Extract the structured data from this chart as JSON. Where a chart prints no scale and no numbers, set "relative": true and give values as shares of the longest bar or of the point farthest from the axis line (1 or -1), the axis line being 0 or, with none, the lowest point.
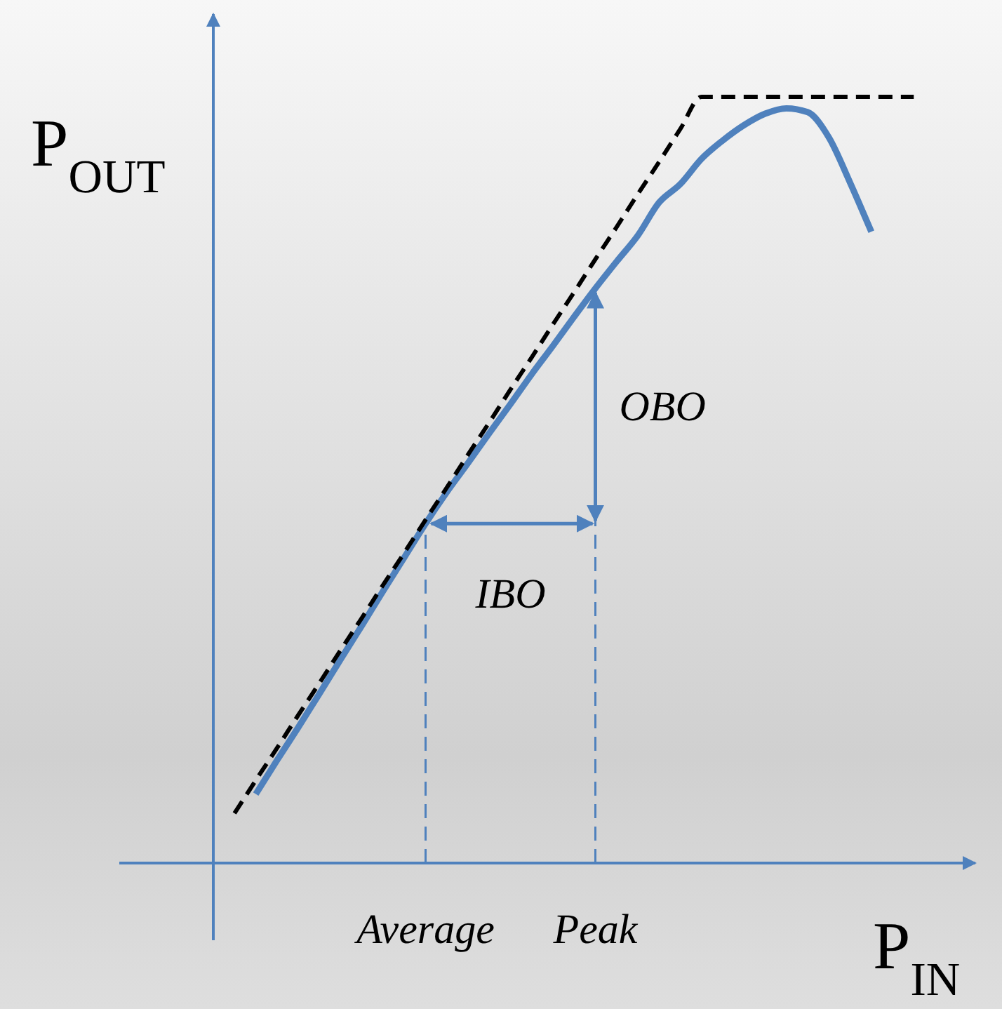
{
  "chart_data": {
    "type": "line",
    "relative": true,
    "xlabel": "P$_{IN}$",
    "ylabel": "P$_{OUT}$",
    "categories": [
      null,
      null,
      null,
      null,
      null,
      null,
      null,
      null,
      null,
      null,
      "Average",
      null,
      null,
      null,
      null,
      null,
      null,
      null,
      "Peak",
      null,
      null,
      null,
      null,
      null,
      null,
      null,
      null,
      null,
      null,
      null,
      null,
      null,
      null,
      null
    ],
    "series": [
      {
        "color": "#4f81bd",
        "line_style": "solid",
        "values": [
          null,
          null,
          0.09,
          0.134,
          0.177,
          0.221,
          0.266,
          0.31,
          0.355,
          0.399,
          0.443,
          0.484,
          0.522,
          0.561,
          0.599,
          0.638,
          0.675,
          0.713,
          0.75,
          0.785,
          0.819,
          0.862,
          0.886,
          0.919,
          0.943,
          0.963,
          0.978,
          0.985,
          0.98,
          0.947,
          0.888,
          0.824,
          null,
          null
        ]
      },
      {
        "color": "#000000",
        "line_style": "dashed",
        "values": [
          null,
          0.065,
          0.108,
          0.15,
          0.193,
          0.235,
          0.278,
          0.32,
          0.363,
          0.405,
          0.448,
          0.49,
          0.533,
          0.575,
          0.618,
          0.66,
          0.703,
          0.745,
          0.788,
          0.83,
          0.873,
          0.915,
          0.958,
          1,
          1,
          1,
          1,
          1,
          1,
          1,
          1,
          1,
          1,
          1
        ]
      }
    ],
    "ref_lines": [
      {
        "axis": "x",
        "value": "Average",
        "color": "#4f81bd",
        "line_style": "dashed"
      },
      {
        "axis": "x",
        "value": "Peak",
        "color": "#4f81bd",
        "line_style": "dashed"
      }
    ],
    "annotations": [
      "OBO",
      "IBO"
    ],
    "grid": false
  }
}
